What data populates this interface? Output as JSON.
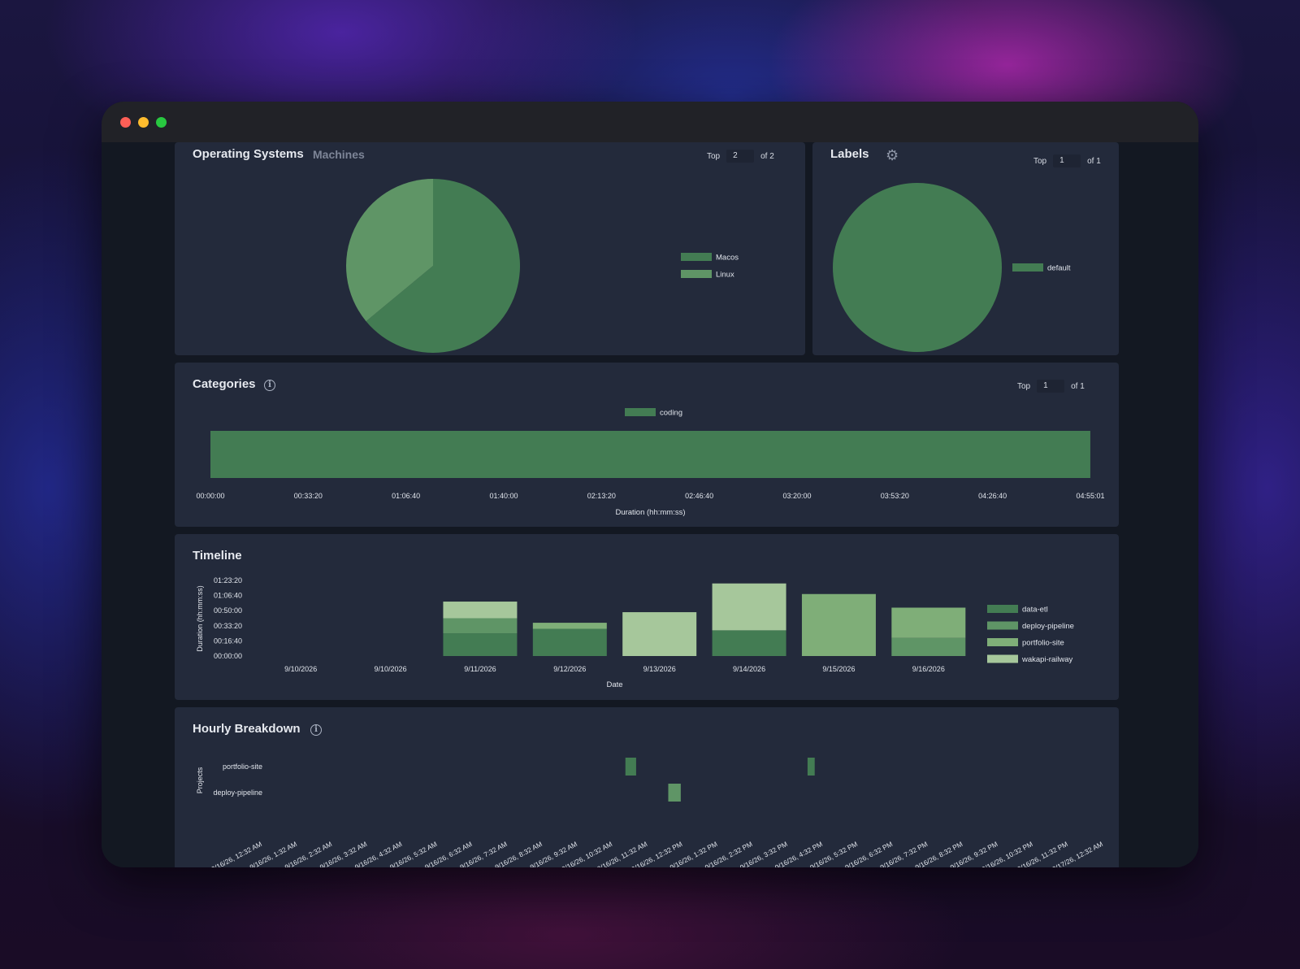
{
  "os_panel": {
    "title": "Operating Systems",
    "subtitle": "Machines",
    "top_label": "Top",
    "top_value": "2",
    "of_label": "of 2"
  },
  "labels_panel": {
    "title": "Labels",
    "top_label": "Top",
    "top_value": "1",
    "of_label": "of 1"
  },
  "categories_panel": {
    "title": "Categories",
    "top_label": "Top",
    "top_value": "1",
    "of_label": "of 1"
  },
  "timeline_panel": {
    "title": "Timeline"
  },
  "hourly_panel": {
    "title": "Hourly Breakdown"
  },
  "icons": [
    "close-dot",
    "minimize-dot",
    "zoom-dot",
    "gear-icon",
    "info-icon"
  ],
  "colors": {
    "green_dark": "#437c53",
    "green_mid": "#5f9566",
    "green_light": "#7fae78",
    "green_pale": "#a6c79b",
    "panel": "#232a3b"
  },
  "chart_data": [
    {
      "type": "pie",
      "labels": [
        "Macos",
        "Linux"
      ],
      "values": [
        64,
        36
      ],
      "colors": [
        "#437c53",
        "#5f9566"
      ]
    },
    {
      "type": "pie",
      "labels": [
        "default"
      ],
      "values": [
        100
      ],
      "colors": [
        "#437c53"
      ]
    },
    {
      "type": "bar",
      "orientation": "horizontal",
      "series": [
        {
          "name": "coding",
          "values": [
            17700
          ]
        }
      ],
      "xlabel": "Duration (hh:mm:ss)",
      "xticks": [
        "00:00:00",
        "00:33:20",
        "01:06:40",
        "01:40:00",
        "02:13:20",
        "02:46:40",
        "03:20:00",
        "03:53:20",
        "04:26:40",
        "04:55:01"
      ],
      "xlim": [
        0,
        17701
      ]
    },
    {
      "type": "bar",
      "stacked": true,
      "categories": [
        "9/10/2026",
        "9/10/2026",
        "9/11/2026",
        "9/12/2026",
        "9/13/2026",
        "9/14/2026",
        "9/15/2026",
        "9/16/2026"
      ],
      "series": [
        {
          "name": "data-etl",
          "values": [
            0,
            0,
            1500,
            1800,
            0,
            1700,
            0,
            0
          ]
        },
        {
          "name": "deploy-pipeline",
          "values": [
            0,
            0,
            1000,
            0,
            0,
            0,
            0,
            1200
          ]
        },
        {
          "name": "portfolio-site",
          "values": [
            0,
            0,
            0,
            400,
            0,
            0,
            4100,
            2000
          ]
        },
        {
          "name": "wakapi-railway",
          "values": [
            0,
            0,
            1100,
            0,
            2900,
            3100,
            0,
            0
          ]
        }
      ],
      "yticks": [
        "00:00:00",
        "00:16:40",
        "00:33:20",
        "00:50:00",
        "01:06:40",
        "01:23:20"
      ],
      "ylim": [
        0,
        5000
      ],
      "xlabel": "Date",
      "ylabel": "Duration (hh:mm:ss)"
    },
    {
      "type": "bar",
      "orientation": "timeline",
      "ylabel": "Projects",
      "rows": [
        "portfolio-site",
        "deploy-pipeline"
      ],
      "xticks": [
        "9/16/26, 12:32 AM",
        "9/16/26, 1:32 AM",
        "9/16/26, 2:32 AM",
        "9/16/26, 3:32 AM",
        "9/16/26, 4:32 AM",
        "9/16/26, 5:32 AM",
        "9/16/26, 6:32 AM",
        "9/16/26, 7:32 AM",
        "9/16/26, 8:32 AM",
        "9/16/26, 9:32 AM",
        "9/16/26, 10:32 AM",
        "9/16/26, 11:32 AM",
        "9/16/26, 12:32 PM",
        "9/16/26, 1:32 PM",
        "9/16/26, 2:32 PM",
        "9/16/26, 3:32 PM",
        "9/16/26, 4:32 PM",
        "9/16/26, 5:32 PM",
        "9/16/26, 6:32 PM",
        "9/16/26, 7:32 PM",
        "9/16/26, 8:32 PM",
        "9/16/26, 9:32 PM",
        "9/16/26, 10:32 PM",
        "9/16/26, 11:32 PM",
        "9/17/26, 12:32 AM"
      ],
      "segments": [
        {
          "row": "portfolio-site",
          "start_hour": 11.3,
          "end_hour": 11.6
        },
        {
          "row": "portfolio-site",
          "start_hour": 16.4,
          "end_hour": 16.6
        },
        {
          "row": "deploy-pipeline",
          "start_hour": 12.5,
          "end_hour": 12.85
        }
      ]
    }
  ]
}
